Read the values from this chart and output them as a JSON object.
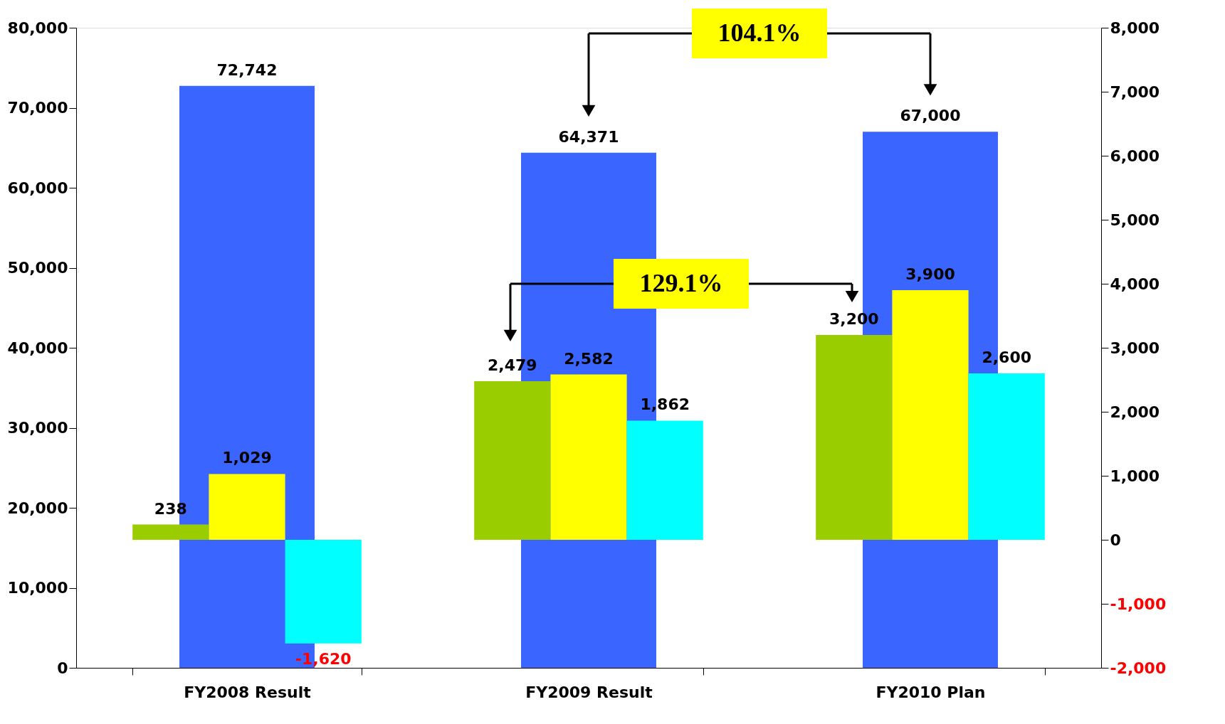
{
  "chart_data": {
    "type": "bar",
    "categories": [
      "FY2008 Result",
      "FY2009 Result",
      "FY2010 Plan"
    ],
    "series": [
      {
        "color": "#3a66ff",
        "values": [
          72742,
          64371,
          67000
        ],
        "value_labels": [
          "72,742",
          "64,371",
          "67,000"
        ]
      },
      {
        "axis": "y2",
        "color": "#9acd00",
        "values": [
          238,
          2479,
          3200
        ],
        "value_labels": [
          "238",
          "2,479",
          "3,200"
        ]
      },
      {
        "axis": "y2",
        "color": "#ffff00",
        "values": [
          1029,
          2582,
          3900
        ],
        "value_labels": [
          "1,029",
          "2,582",
          "3,900"
        ]
      },
      {
        "axis": "y2",
        "color": "#00ffff",
        "values": [
          -1620,
          1862,
          2600
        ],
        "value_labels": [
          "-1,620",
          "1,862",
          "2,600"
        ]
      }
    ],
    "ylim": [
      0,
      80000
    ],
    "yticks": [
      0,
      {
        "value": 10000,
        "label": "10,000"
      },
      {
        "value": 20000,
        "label": "20,000"
      },
      {
        "value": 30000,
        "label": "30,000"
      },
      {
        "value": 40000,
        "label": "40,000"
      },
      {
        "value": 50000,
        "label": "50,000"
      },
      {
        "value": 60000,
        "label": "60,000"
      },
      {
        "value": 70000,
        "label": "70,000"
      },
      {
        "value": 80000,
        "label": "80,000"
      }
    ],
    "y2lim": [
      -2000,
      8000
    ],
    "y2ticks": [
      {
        "value": -2000,
        "label": "-2,000"
      },
      {
        "value": -1000,
        "label": "-1,000"
      },
      0,
      {
        "value": 1000,
        "label": "1,000"
      },
      {
        "value": 2000,
        "label": "2,000"
      },
      {
        "value": 3000,
        "label": "3,000"
      },
      {
        "value": 4000,
        "label": "4,000"
      },
      {
        "value": 5000,
        "label": "5,000"
      },
      {
        "value": 6000,
        "label": "6,000"
      },
      {
        "value": 7000,
        "label": "7,000"
      },
      {
        "value": 8000,
        "label": "8,000"
      }
    ],
    "grid": false,
    "annotations": [
      "104.1%",
      "129.1%"
    ]
  }
}
